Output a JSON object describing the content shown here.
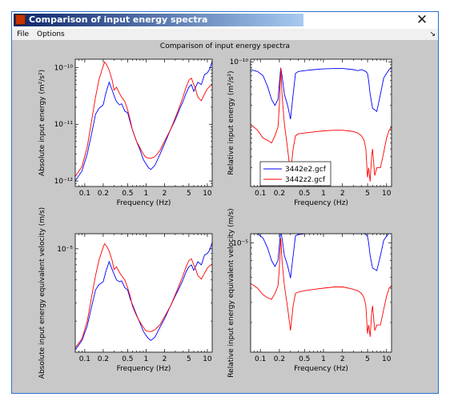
{
  "window": {
    "title": "Comparison of input energy spectra",
    "close_glyph": "✕",
    "icon": "matlab-figure-icon"
  },
  "menu": {
    "file": "File",
    "options": "Options",
    "dock_glyph": "↘"
  },
  "figure_title": "Comparison of input energy spectra",
  "series_colors": {
    "e2": "#0000ff",
    "z2": "#ff0000"
  },
  "chart_data": [
    {
      "type": "line",
      "ylabel": "Absolute input energy (m²/s²)",
      "xlabel": "Frequency (Hz)",
      "xscale": "log",
      "yscale": "log",
      "xlim": [
        0.07,
        12
      ],
      "ylim": [
        8e-13,
        1.4e-10
      ],
      "xticks": [
        0.1,
        0.2,
        0.5,
        1,
        2,
        5,
        10
      ],
      "xtick_labels": [
        "0.1",
        "0.2",
        "0.5",
        "1",
        "2",
        "5",
        "10"
      ],
      "yticks": [
        1e-12,
        1e-11,
        1e-10
      ],
      "ytick_labels": [
        "10⁻¹²",
        "10⁻¹¹",
        "10⁻¹⁰"
      ],
      "series": [
        {
          "key": "e2",
          "x": [
            0.07,
            0.09,
            0.11,
            0.13,
            0.15,
            0.17,
            0.2,
            0.22,
            0.25,
            0.28,
            0.3,
            0.33,
            0.37,
            0.4,
            0.45,
            0.5,
            0.55,
            0.6,
            0.7,
            0.8,
            0.9,
            1.0,
            1.1,
            1.2,
            1.4,
            1.7,
            2.0,
            2.5,
            3.0,
            3.5,
            4.0,
            4.5,
            5.0,
            5.5,
            6.0,
            7.0,
            8.0,
            9.0,
            10.0,
            11.0,
            12.0
          ],
          "y": [
            1e-12,
            1.5e-12,
            3e-12,
            7e-12,
            1.5e-11,
            1.9e-11,
            2.2e-11,
            3.5e-11,
            5.5e-11,
            4e-11,
            3.2e-11,
            2.5e-11,
            2.2e-11,
            2.3e-11,
            1.7e-11,
            1.6e-11,
            1.1e-11,
            8e-12,
            5e-12,
            3.5e-12,
            2.4e-12,
            2e-12,
            1.7e-12,
            1.6e-12,
            1.9e-12,
            3e-12,
            4.5e-12,
            8e-12,
            1.2e-11,
            1.8e-11,
            2.5e-11,
            3.5e-11,
            4.5e-11,
            5e-11,
            3.8e-11,
            5.5e-11,
            5e-11,
            7.5e-11,
            8e-11,
            9.5e-11,
            1.3e-10
          ]
        },
        {
          "key": "z2",
          "x": [
            0.07,
            0.09,
            0.11,
            0.13,
            0.15,
            0.17,
            0.19,
            0.21,
            0.23,
            0.25,
            0.28,
            0.3,
            0.33,
            0.37,
            0.4,
            0.45,
            0.5,
            0.55,
            0.6,
            0.7,
            0.8,
            0.9,
            1.0,
            1.2,
            1.4,
            1.7,
            2.0,
            2.5,
            3.0,
            3.5,
            4.0,
            4.5,
            5.0,
            5.5,
            6.0,
            6.5,
            7.0,
            8.0,
            9.0,
            10.0,
            11.0,
            12.0
          ],
          "y": [
            1.2e-12,
            1.8e-12,
            4e-12,
            1.2e-11,
            3e-11,
            6e-11,
            9e-11,
            1.25e-10,
            1.1e-10,
            9e-11,
            6e-11,
            4e-11,
            4.5e-11,
            3.5e-11,
            3e-11,
            2.5e-11,
            1.8e-11,
            1.2e-11,
            8e-12,
            5e-12,
            3.8e-12,
            3e-12,
            2.6e-12,
            2.5e-12,
            2.7e-12,
            3.5e-12,
            5e-12,
            8e-12,
            1.3e-11,
            2e-11,
            3e-11,
            4.5e-11,
            6e-11,
            6.5e-11,
            5e-11,
            4e-11,
            3e-11,
            2.6e-11,
            3.4e-11,
            4.2e-11,
            4.7e-11,
            5e-11
          ]
        }
      ]
    },
    {
      "type": "line",
      "ylabel": "Relative input energy (m²/s²)",
      "xlabel": "Frequency (Hz)",
      "xscale": "log",
      "yscale": "log",
      "xlim": [
        0.07,
        12
      ],
      "ylim": [
        1e-12,
        1.1e-10
      ],
      "xticks": [
        0.1,
        0.2,
        0.5,
        1,
        2,
        5,
        10
      ],
      "xtick_labels": [
        "0.1",
        "0.2",
        "0.5",
        "1",
        "2",
        "5",
        "10"
      ],
      "yticks": [
        1e-10
      ],
      "ytick_labels": [
        "10⁻¹⁰"
      ],
      "legend": {
        "entries": [
          "3442e2.gcf",
          "3442z2.gcf"
        ],
        "location": "lower-left"
      },
      "series": [
        {
          "key": "e2",
          "x": [
            0.07,
            0.09,
            0.11,
            0.13,
            0.15,
            0.17,
            0.19,
            0.2,
            0.21,
            0.22,
            0.24,
            0.27,
            0.3,
            0.33,
            0.36,
            0.4,
            0.5,
            0.7,
            1.0,
            1.5,
            2.0,
            3.0,
            3.5,
            4.0,
            4.4,
            4.7,
            5.0,
            5.2,
            5.5,
            6.0,
            7.0,
            8.0,
            9.0,
            10.0,
            11.0,
            12.0
          ],
          "y": [
            7.5e-11,
            7e-11,
            6e-11,
            4e-11,
            2.5e-11,
            2e-11,
            2.5e-11,
            4.5e-11,
            8e-11,
            6e-11,
            3e-11,
            2e-11,
            1.2e-11,
            3e-11,
            6.5e-11,
            7e-11,
            7.2e-11,
            7.5e-11,
            7.7e-11,
            7.8e-11,
            7.8e-11,
            7.5e-11,
            7.2e-11,
            7.5e-11,
            7.2e-11,
            7e-11,
            6.5e-11,
            5e-11,
            3e-11,
            1.8e-11,
            1.6e-11,
            3e-11,
            5.5e-11,
            6.5e-11,
            7.5e-11,
            8e-11
          ]
        },
        {
          "key": "z2",
          "x": [
            0.07,
            0.09,
            0.11,
            0.13,
            0.15,
            0.17,
            0.19,
            0.2,
            0.21,
            0.22,
            0.24,
            0.27,
            0.3,
            0.33,
            0.36,
            0.4,
            0.5,
            0.7,
            1.0,
            1.5,
            2.0,
            2.5,
            3.0,
            3.5,
            4.0,
            4.4,
            4.7,
            5.0,
            5.2,
            5.5,
            5.8,
            6.0,
            6.5,
            7.0,
            8.0,
            9.0,
            10.0,
            11.0,
            12.0
          ],
          "y": [
            1e-11,
            8e-12,
            6e-12,
            5.5e-12,
            5e-12,
            6.5e-12,
            9e-12,
            2e-11,
            8e-11,
            3e-11,
            1e-11,
            4e-12,
            1.6e-12,
            4e-12,
            6.5e-12,
            7e-12,
            7.2e-12,
            7.5e-12,
            7.8e-12,
            8e-12,
            8e-12,
            7.8e-12,
            7.6e-12,
            7.2e-12,
            6.5e-12,
            5.5e-12,
            4e-12,
            1.4e-12,
            2e-12,
            1.2e-12,
            3e-12,
            4e-12,
            1.5e-12,
            2e-12,
            2e-12,
            3.5e-12,
            6e-12,
            8e-12,
            9e-12
          ]
        }
      ]
    },
    {
      "type": "line",
      "ylabel": "Absolute input energy equivalent velocity (m/s)",
      "xlabel": "Frequency (Hz)",
      "xscale": "log",
      "yscale": "log",
      "xlim": [
        0.07,
        12
      ],
      "ylim": [
        1e-06,
        1.4e-05
      ],
      "xticks": [
        0.1,
        0.2,
        0.5,
        1,
        2,
        5,
        10
      ],
      "xtick_labels": [
        "0.1",
        "0.2",
        "0.5",
        "1",
        "2",
        "5",
        "10"
      ],
      "yticks": [
        1e-05
      ],
      "ytick_labels": [
        "10⁻⁵"
      ],
      "series": [
        {
          "key": "e2",
          "x": [
            0.07,
            0.09,
            0.11,
            0.13,
            0.15,
            0.17,
            0.2,
            0.22,
            0.25,
            0.28,
            0.3,
            0.33,
            0.37,
            0.4,
            0.45,
            0.5,
            0.55,
            0.6,
            0.7,
            0.8,
            0.9,
            1.0,
            1.1,
            1.2,
            1.4,
            1.7,
            2.0,
            2.5,
            3.0,
            3.5,
            4.0,
            4.5,
            5.0,
            5.5,
            6.0,
            7.0,
            8.0,
            9.0,
            10.0,
            11.0,
            12.0
          ],
          "y": [
            1.05e-06,
            1.3e-06,
            1.8e-06,
            2.8e-06,
            4e-06,
            4.5e-06,
            4.8e-06,
            6e-06,
            7.5e-06,
            6.3e-06,
            5.7e-06,
            5e-06,
            4.8e-06,
            4.9e-06,
            4.2e-06,
            4e-06,
            3.3e-06,
            2.9e-06,
            2.3e-06,
            1.9e-06,
            1.6e-06,
            1.45e-06,
            1.35e-06,
            1.3e-06,
            1.4e-06,
            1.75e-06,
            2.1e-06,
            2.8e-06,
            3.5e-06,
            4.2e-06,
            5e-06,
            6e-06,
            6.7e-06,
            7e-06,
            6.2e-06,
            7.5e-06,
            7e-06,
            8.7e-06,
            9e-06,
            9.8e-06,
            1.15e-05
          ]
        },
        {
          "key": "z2",
          "x": [
            0.07,
            0.09,
            0.11,
            0.13,
            0.15,
            0.17,
            0.19,
            0.21,
            0.23,
            0.25,
            0.28,
            0.3,
            0.33,
            0.37,
            0.4,
            0.45,
            0.5,
            0.55,
            0.6,
            0.7,
            0.8,
            0.9,
            1.0,
            1.2,
            1.4,
            1.7,
            2.0,
            2.5,
            3.0,
            3.5,
            4.0,
            4.5,
            5.0,
            5.5,
            6.0,
            6.5,
            7.0,
            8.0,
            9.0,
            10.0,
            11.0,
            12.0
          ],
          "y": [
            1.1e-06,
            1.35e-06,
            2e-06,
            3.5e-06,
            5.5e-06,
            7.7e-06,
            9.5e-06,
            1.12e-05,
            1.05e-05,
            9.5e-06,
            7.7e-06,
            6.3e-06,
            6.7e-06,
            5.9e-06,
            5.5e-06,
            5e-06,
            4.2e-06,
            3.5e-06,
            2.8e-06,
            2.25e-06,
            1.95e-06,
            1.75e-06,
            1.6e-06,
            1.58e-06,
            1.65e-06,
            1.85e-06,
            2.2e-06,
            2.8e-06,
            3.6e-06,
            4.5e-06,
            5.5e-06,
            6.7e-06,
            7.7e-06,
            8e-06,
            7e-06,
            6.3e-06,
            5.5e-06,
            5.1e-06,
            5.8e-06,
            6.5e-06,
            6.9e-06,
            7.1e-06
          ]
        }
      ]
    },
    {
      "type": "line",
      "ylabel": "Relative input energy equivalent velocity (m/s)",
      "xlabel": "Frequency (Hz)",
      "xscale": "log",
      "yscale": "log",
      "xlim": [
        0.07,
        12
      ],
      "ylim": [
        1.1e-06,
        1.2e-05
      ],
      "xticks": [
        0.1,
        0.2,
        0.5,
        1,
        2,
        5,
        10
      ],
      "xtick_labels": [
        "0.1",
        "0.2",
        "0.5",
        "1",
        "2",
        "5",
        "10"
      ],
      "yticks": [
        1e-05
      ],
      "ytick_labels": [
        "10⁻⁵"
      ],
      "series": [
        {
          "key": "e2",
          "x": [
            0.07,
            0.09,
            0.11,
            0.13,
            0.15,
            0.17,
            0.19,
            0.2,
            0.21,
            0.22,
            0.24,
            0.27,
            0.3,
            0.33,
            0.36,
            0.4,
            0.5,
            0.7,
            1.0,
            1.5,
            2.0,
            3.0,
            3.5,
            4.0,
            4.4,
            4.7,
            5.0,
            5.2,
            5.5,
            6.0,
            7.0,
            8.0,
            9.0,
            10.0,
            11.0,
            12.0
          ],
          "y": [
            1.25e-05,
            1.2e-05,
            1.1e-05,
            9e-06,
            7e-06,
            6.2e-06,
            7e-06,
            9.5e-06,
            1.28e-05,
            1.1e-05,
            7.7e-06,
            6.3e-06,
            4.9e-06,
            7.7e-06,
            1.15e-05,
            1.18e-05,
            1.2e-05,
            1.22e-05,
            1.24e-05,
            1.25e-05,
            1.25e-05,
            1.22e-05,
            1.2e-05,
            1.22e-05,
            1.2e-05,
            1.18e-05,
            1.14e-05,
            1e-05,
            7.7e-06,
            6e-06,
            5.7e-06,
            7.7e-06,
            1.05e-05,
            1.14e-05,
            1.22e-05,
            1.26e-05
          ]
        },
        {
          "key": "z2",
          "x": [
            0.07,
            0.09,
            0.11,
            0.13,
            0.15,
            0.17,
            0.19,
            0.2,
            0.21,
            0.22,
            0.24,
            0.27,
            0.3,
            0.33,
            0.36,
            0.4,
            0.5,
            0.7,
            1.0,
            1.5,
            2.0,
            2.5,
            3.0,
            3.5,
            4.0,
            4.4,
            4.7,
            5.0,
            5.2,
            5.5,
            5.8,
            6.0,
            6.5,
            7.0,
            8.0,
            9.0,
            10.0,
            11.0,
            12.0
          ],
          "y": [
            4.4e-06,
            4e-06,
            3.5e-06,
            3.3e-06,
            3.2e-06,
            3.6e-06,
            4.2e-06,
            6e-06,
            1.1e-05,
            7e-06,
            4.2e-06,
            2.7e-06,
            1.7e-06,
            2.8e-06,
            3.6e-06,
            3.7e-06,
            3.8e-06,
            3.9e-06,
            4e-06,
            4.1e-06,
            4.1e-06,
            4e-06,
            3.9e-06,
            3.8e-06,
            3.6e-06,
            3.3e-06,
            2.8e-06,
            1.6e-06,
            1.9e-06,
            1.5e-06,
            2.4e-06,
            2.8e-06,
            1.7e-06,
            1.9e-06,
            1.9e-06,
            2.6e-06,
            3.4e-06,
            4e-06,
            4.2e-06
          ]
        }
      ]
    }
  ]
}
